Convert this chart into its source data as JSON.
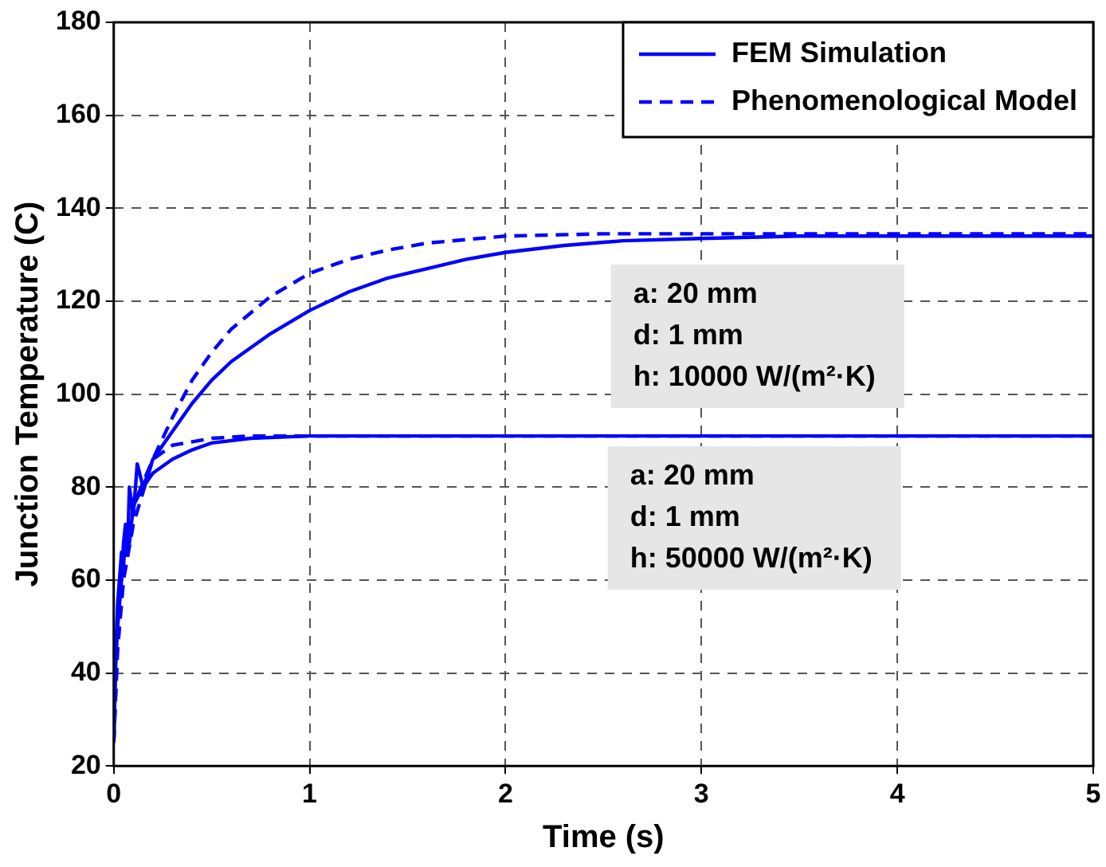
{
  "chart_data": {
    "type": "line",
    "xlabel": "Time (s)",
    "ylabel": "Junction Temperature (C)",
    "xlim": [
      0,
      5
    ],
    "xticks": [
      0,
      1,
      2,
      3,
      4,
      5
    ],
    "ylim": [
      20,
      180
    ],
    "yticks": [
      20,
      40,
      60,
      80,
      100,
      120,
      140,
      160,
      180
    ],
    "grid": true,
    "legend": "top right",
    "marker": "none",
    "series": [
      {
        "name": "FEM Simulation",
        "color": "#0000ff",
        "line_style": "solid",
        "x": [
          0,
          0.01,
          0.02,
          0.04,
          0.05,
          0.06,
          0.07,
          0.08,
          0.1,
          0.12,
          0.15,
          0.2,
          0.3,
          0.4,
          0.5,
          0.6,
          0.8,
          1.0,
          1.2,
          1.4,
          1.6,
          1.8,
          2.0,
          2.3,
          2.6,
          3,
          3.5,
          4,
          5
        ],
        "values": [
          25,
          42,
          50,
          60,
          68,
          72,
          66,
          80,
          74,
          85,
          80,
          86,
          92,
          98,
          103,
          107,
          113,
          118,
          122,
          125,
          127,
          129,
          130.5,
          132,
          133,
          133.5,
          134,
          134,
          134
        ]
      },
      {
        "name": "Phenomenological Model",
        "color": "#0000ff",
        "line_style": "dashed",
        "x": [
          0,
          0.02,
          0.05,
          0.1,
          0.2,
          0.3,
          0.4,
          0.5,
          0.6,
          0.8,
          1.0,
          1.2,
          1.4,
          1.6,
          2,
          2.5,
          5
        ],
        "values": [
          25,
          45,
          60,
          72,
          86,
          95,
          103,
          109,
          114,
          121,
          126,
          129,
          131,
          132.5,
          134,
          134.5,
          134.5
        ]
      },
      {
        "color": "#0000ff",
        "line_style": "solid",
        "x": [
          0,
          0.01,
          0.02,
          0.04,
          0.05,
          0.06,
          0.08,
          0.1,
          0.15,
          0.2,
          0.3,
          0.4,
          0.5,
          0.7,
          1,
          5
        ],
        "values": [
          25,
          44,
          55,
          66,
          63,
          70,
          68,
          76,
          80,
          83,
          86,
          88,
          89.5,
          90.5,
          91,
          91
        ]
      },
      {
        "color": "#0000ff",
        "line_style": "dashed",
        "x": [
          0,
          0.02,
          0.05,
          0.1,
          0.2,
          0.3,
          0.5,
          0.7,
          1,
          5
        ],
        "values": [
          25,
          48,
          62,
          76,
          86,
          89,
          90.5,
          91,
          91,
          91
        ]
      }
    ],
    "annotations": [
      "a: 20 mm\nd: 1 mm\nh: 10000 W/(m²·K)",
      "a: 20 mm\nd: 1 mm\nh: 50000 W/(m²·K)"
    ]
  }
}
